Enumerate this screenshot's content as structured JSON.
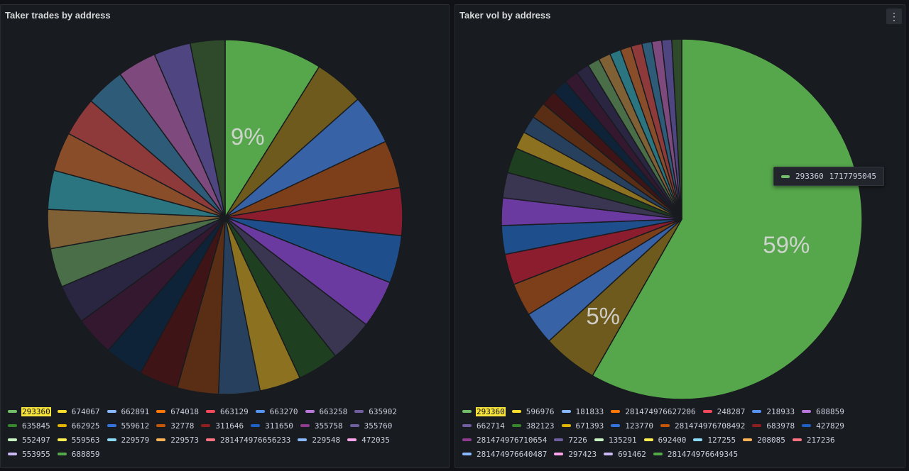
{
  "chart_data": [
    {
      "type": "pie",
      "title": "Taker trades by address",
      "slices": [
        {
          "name": "293360",
          "value": 9.0,
          "color": "#56a64b",
          "label": "9%"
        },
        {
          "name": "674067",
          "value": 4.6,
          "color": "#6e5a1c"
        },
        {
          "name": "662891",
          "value": 4.6,
          "color": "#3862a6"
        },
        {
          "name": "674018",
          "value": 4.4,
          "color": "#7d3f19"
        },
        {
          "name": "663129",
          "value": 4.4,
          "color": "#8c1d2e"
        },
        {
          "name": "663270",
          "value": 4.4,
          "color": "#1f4e8c"
        },
        {
          "name": "663258",
          "value": 4.4,
          "color": "#6b3aa0"
        },
        {
          "name": "635902",
          "value": 4.0,
          "color": "#3a3550"
        },
        {
          "name": "635845",
          "value": 3.8,
          "color": "#1f4020"
        },
        {
          "name": "662925",
          "value": 3.8,
          "color": "#8c7220"
        },
        {
          "name": "559612",
          "value": 3.8,
          "color": "#27405e"
        },
        {
          "name": "32778",
          "value": 3.8,
          "color": "#5a2e14"
        },
        {
          "name": "311646",
          "value": 3.6,
          "color": "#3e1416"
        },
        {
          "name": "311650",
          "value": 3.6,
          "color": "#0f2338"
        },
        {
          "name": "355758",
          "value": 3.6,
          "color": "#331830"
        },
        {
          "name": "355760",
          "value": 3.6,
          "color": "#2a2540"
        },
        {
          "name": "552497",
          "value": 3.6,
          "color": "#4a6e47"
        },
        {
          "name": "559563",
          "value": 3.6,
          "color": "#806035"
        },
        {
          "name": "229579",
          "value": 3.6,
          "color": "#2a7580"
        },
        {
          "name": "229573",
          "value": 3.6,
          "color": "#8a4d2a"
        },
        {
          "name": "281474976656233",
          "value": 3.6,
          "color": "#8e3a3a"
        },
        {
          "name": "229548",
          "value": 3.6,
          "color": "#2e5c78"
        },
        {
          "name": "472035",
          "value": 3.6,
          "color": "#7e4a7e"
        },
        {
          "name": "553955",
          "value": 3.4,
          "color": "#4f4580"
        },
        {
          "name": "688859",
          "value": 3.2,
          "color": "#2e4a2a"
        }
      ]
    },
    {
      "type": "pie",
      "title": "Taker vol by address",
      "slices": [
        {
          "name": "293360",
          "value": 59.0,
          "color": "#56a64b",
          "label": "59%"
        },
        {
          "name": "596976",
          "value": 5.0,
          "color": "#6e5a1c",
          "label": "5%"
        },
        {
          "name": "181833",
          "value": 3.0,
          "color": "#3862a6"
        },
        {
          "name": "281474976627206",
          "value": 3.0,
          "color": "#7d3f19"
        },
        {
          "name": "248287",
          "value": 2.8,
          "color": "#8c1d2e"
        },
        {
          "name": "218933",
          "value": 2.6,
          "color": "#1f4e8c"
        },
        {
          "name": "688859",
          "value": 2.5,
          "color": "#6b3aa0"
        },
        {
          "name": "662714",
          "value": 2.3,
          "color": "#3a3550"
        },
        {
          "name": "382123",
          "value": 2.3,
          "color": "#1f4020"
        },
        {
          "name": "671393",
          "value": 1.6,
          "color": "#8c7220"
        },
        {
          "name": "123770",
          "value": 1.6,
          "color": "#27405e"
        },
        {
          "name": "281474976708492",
          "value": 1.5,
          "color": "#5a2e14"
        },
        {
          "name": "683978",
          "value": 1.4,
          "color": "#3e1416"
        },
        {
          "name": "427829",
          "value": 1.4,
          "color": "#0f2338"
        },
        {
          "name": "281474976710654",
          "value": 1.3,
          "color": "#331830"
        },
        {
          "name": "7226",
          "value": 1.2,
          "color": "#2a2540"
        },
        {
          "name": "135291",
          "value": 1.1,
          "color": "#4a6e47"
        },
        {
          "name": "692400",
          "value": 1.1,
          "color": "#806035"
        },
        {
          "name": "127255",
          "value": 1.0,
          "color": "#2a7580"
        },
        {
          "name": "208085",
          "value": 1.0,
          "color": "#8a4d2a"
        },
        {
          "name": "217236",
          "value": 1.0,
          "color": "#8e3a3a"
        },
        {
          "name": "281474976640487",
          "value": 0.9,
          "color": "#2e5c78"
        },
        {
          "name": "297423",
          "value": 0.9,
          "color": "#7e4a7e"
        },
        {
          "name": "691462",
          "value": 0.9,
          "color": "#4f4580"
        },
        {
          "name": "281474976649345",
          "value": 0.9,
          "color": "#2e4a2a"
        }
      ]
    }
  ],
  "legend_colors": [
    "#73bf69",
    "#fade2a",
    "#8ab8ff",
    "#ff780a",
    "#f2495c",
    "#5794f2",
    "#b877d9",
    "#705da0",
    "#37872d",
    "#e0b400",
    "#3274d9",
    "#c4560a",
    "#8f1e1e",
    "#1f60c4",
    "#8f3b8f",
    "#6e5f9e",
    "#c8f2c2",
    "#ffee52",
    "#8cdbf7",
    "#ffb357",
    "#ff7383",
    "#8ab8ff",
    "#ffa6ea",
    "#cab9f0",
    "#56a64b"
  ],
  "tooltip": {
    "name": "293360",
    "value": "1717795045"
  },
  "menu_icon": "⋮"
}
